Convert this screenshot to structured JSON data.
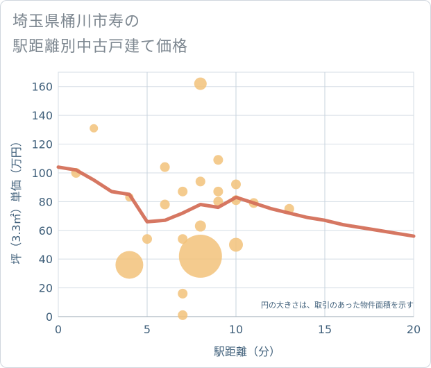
{
  "title_lines": [
    "埼玉県桶川市寿の",
    "駅距離別中古戸建て価格"
  ],
  "chart_data": {
    "type": "scatter",
    "title": "埼玉県桶川市寿の駅距離別中古戸建て価格",
    "xlabel": "駅距離（分）",
    "ylabel": "坪（3.3㎡）単価（万円）",
    "xlim": [
      0,
      20
    ],
    "ylim": [
      0,
      170
    ],
    "xticks": [
      0,
      5,
      10,
      15,
      20
    ],
    "yticks": [
      0,
      20,
      40,
      60,
      80,
      100,
      120,
      140,
      160
    ],
    "grid": true,
    "annotation": "円の大きさは、取引のあった物件面積を示す",
    "bubble_color": "#f2c27a",
    "line_color": "#d4705a",
    "points": [
      {
        "x": 1,
        "y": 100,
        "size": 7
      },
      {
        "x": 2,
        "y": 131,
        "size": 6
      },
      {
        "x": 4,
        "y": 83,
        "size": 6
      },
      {
        "x": 4,
        "y": 36,
        "size": 20
      },
      {
        "x": 5,
        "y": 54,
        "size": 7
      },
      {
        "x": 6,
        "y": 104,
        "size": 7
      },
      {
        "x": 6,
        "y": 78,
        "size": 7
      },
      {
        "x": 7,
        "y": 87,
        "size": 7
      },
      {
        "x": 7,
        "y": 54,
        "size": 7
      },
      {
        "x": 7,
        "y": 16,
        "size": 7
      },
      {
        "x": 7,
        "y": 1,
        "size": 7
      },
      {
        "x": 8,
        "y": 162,
        "size": 9
      },
      {
        "x": 8,
        "y": 94,
        "size": 7
      },
      {
        "x": 8,
        "y": 63,
        "size": 8
      },
      {
        "x": 8,
        "y": 42,
        "size": 31
      },
      {
        "x": 9,
        "y": 109,
        "size": 7
      },
      {
        "x": 9,
        "y": 87,
        "size": 7
      },
      {
        "x": 9,
        "y": 80,
        "size": 7
      },
      {
        "x": 10,
        "y": 92,
        "size": 7
      },
      {
        "x": 10,
        "y": 81,
        "size": 7
      },
      {
        "x": 10,
        "y": 50,
        "size": 10
      },
      {
        "x": 11,
        "y": 79,
        "size": 7
      },
      {
        "x": 13,
        "y": 75,
        "size": 7
      }
    ],
    "series": [
      {
        "x": [
          0,
          1,
          2,
          3,
          4,
          5,
          6,
          7,
          8,
          9,
          10,
          11,
          12,
          13,
          14,
          15,
          16,
          17,
          18,
          19,
          20
        ],
        "y": [
          104,
          102,
          95,
          87,
          85,
          66,
          67,
          72,
          78,
          76,
          83,
          79,
          75,
          72,
          69,
          67,
          64,
          62,
          60,
          58,
          56
        ]
      }
    ]
  }
}
